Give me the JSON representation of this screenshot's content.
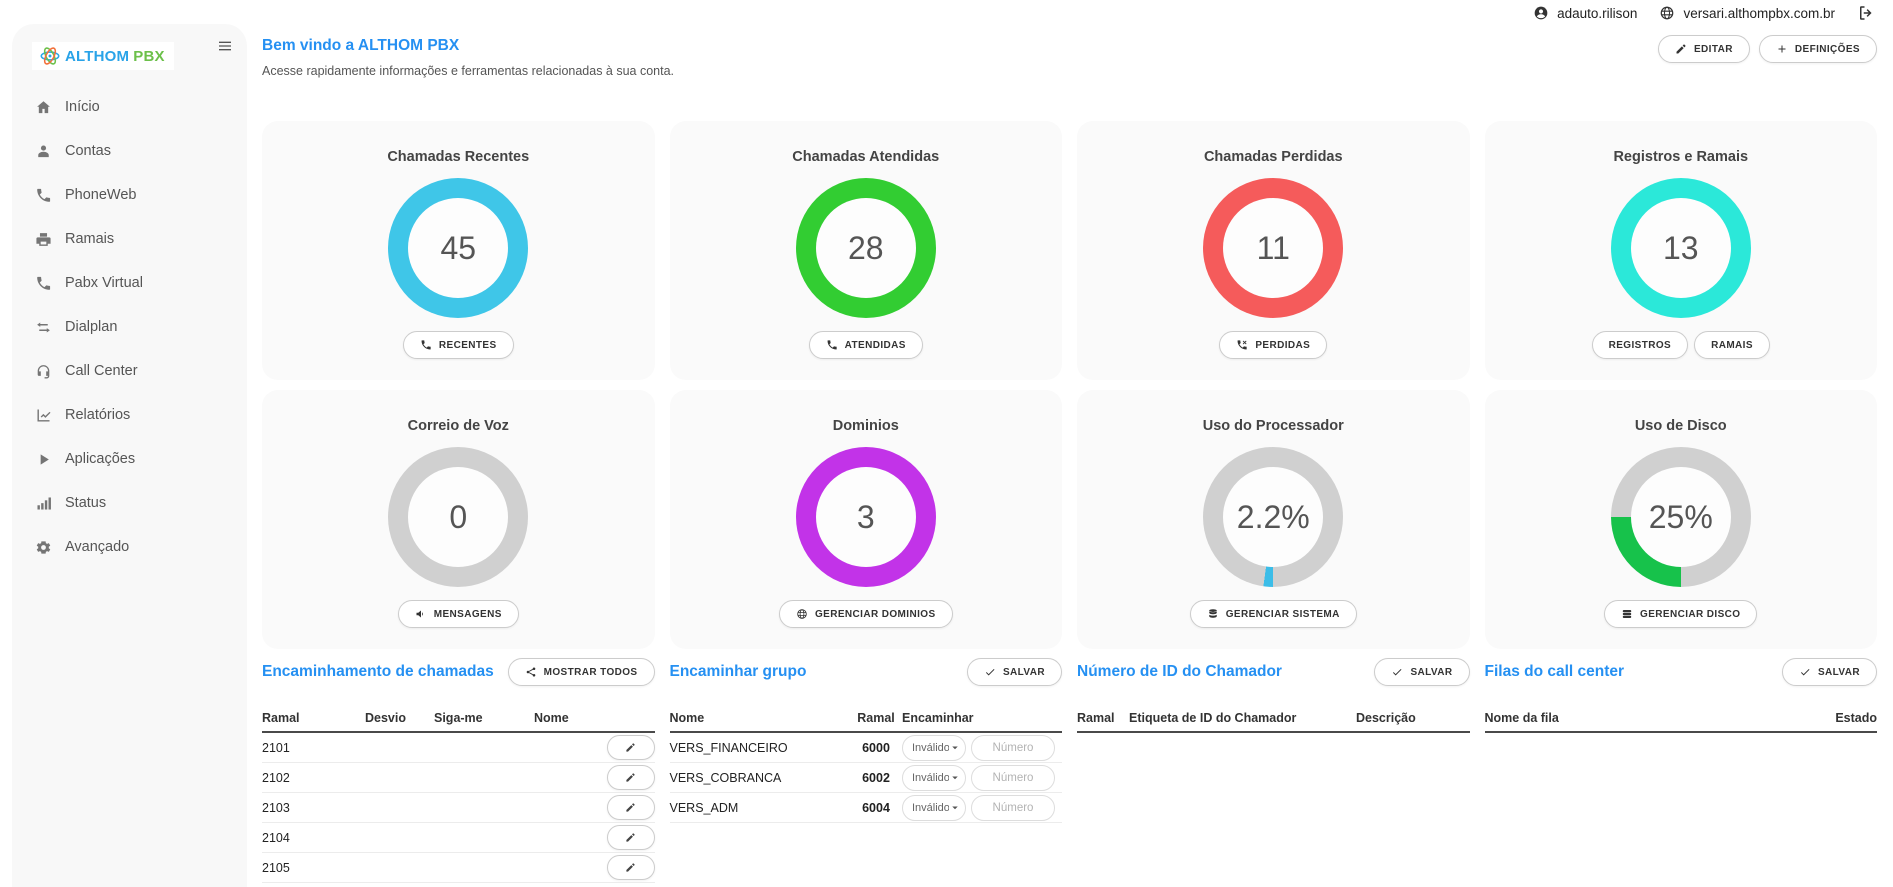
{
  "topbar": {
    "username": "adauto.rilison",
    "domain": "versari.althompbx.com.br"
  },
  "page_header": {
    "title": "Bem vindo a ALTHOM PBX",
    "subtitle": "Acesse rapidamente informações e ferramentas relacionadas à sua conta.",
    "buttons": [
      {
        "label": "EDITAR",
        "icon": "pencil-icon"
      },
      {
        "label": "DEFINIÇÕES",
        "icon": "plus-icon"
      }
    ]
  },
  "sidebar": {
    "logo_primary": "ALTHOM",
    "logo_secondary": "PBX",
    "items": [
      {
        "label": "Início",
        "icon": "home-icon"
      },
      {
        "label": "Contas",
        "icon": "user-icon"
      },
      {
        "label": "PhoneWeb",
        "icon": "phone-icon"
      },
      {
        "label": "Ramais",
        "icon": "fax-icon"
      },
      {
        "label": "Pabx Virtual",
        "icon": "phone-alt-icon"
      },
      {
        "label": "Dialplan",
        "icon": "exchange-icon"
      },
      {
        "label": "Call Center",
        "icon": "headset-icon"
      },
      {
        "label": "Relatórios",
        "icon": "chart-icon"
      },
      {
        "label": "Aplicações",
        "icon": "play-icon"
      },
      {
        "label": "Status",
        "icon": "signal-icon"
      },
      {
        "label": "Avançado",
        "icon": "gear-icon"
      }
    ]
  },
  "cards": [
    {
      "title": "Chamadas Recentes",
      "value": "45",
      "percent": 100,
      "color": "#3fc6e8",
      "track": "#d0d0d0",
      "buttons": [
        {
          "label": "RECENTES",
          "icon": "phone-icon"
        }
      ]
    },
    {
      "title": "Chamadas Atendidas",
      "value": "28",
      "percent": 100,
      "color": "#32cd32",
      "track": "#d0d0d0",
      "buttons": [
        {
          "label": "ATENDIDAS",
          "icon": "phone-icon"
        }
      ]
    },
    {
      "title": "Chamadas Perdidas",
      "value": "11",
      "percent": 100,
      "color": "#f55b5b",
      "track": "#d0d0d0",
      "buttons": [
        {
          "label": "PERDIDAS",
          "icon": "phone-missed-icon"
        }
      ]
    },
    {
      "title": "Registros e Ramais",
      "value": "13",
      "percent": 100,
      "color": "#2be8d9",
      "track": "#d0d0d0",
      "buttons": [
        {
          "label": "REGISTROS"
        },
        {
          "label": "RAMAIS"
        }
      ]
    },
    {
      "title": "Correio de Voz",
      "value": "0",
      "percent": 0,
      "color": "#3fc6e8",
      "track": "#d0d0d0",
      "buttons": [
        {
          "label": "MENSAGENS",
          "icon": "speaker-icon"
        }
      ]
    },
    {
      "title": "Dominios",
      "value": "3",
      "percent": 100,
      "color": "#c233e8",
      "track": "#d0d0d0",
      "buttons": [
        {
          "label": "GERENCIAR DOMINIOS",
          "icon": "globe-icon"
        }
      ]
    },
    {
      "title": "Uso do Processador",
      "value": "2.2%",
      "percent": 2.2,
      "color": "#3bbde8",
      "track": "#d0d0d0",
      "buttons": [
        {
          "label": "GERENCIAR SISTEMA",
          "icon": "server-icon"
        }
      ]
    },
    {
      "title": "Uso de Disco",
      "value": "25%",
      "percent": 25,
      "color": "#17c24b",
      "track": "#d0d0d0",
      "buttons": [
        {
          "label": "GERENCIAR DISCO",
          "icon": "disk-icon"
        }
      ]
    }
  ],
  "sections": {
    "forwarding": {
      "title": "Encaminhamento de chamadas",
      "action": {
        "label": "MOSTRAR TODOS",
        "icon": "share-icon"
      },
      "headers": [
        "Ramal",
        "Desvio",
        "Siga-me",
        "Nome"
      ],
      "rows": [
        {
          "ramal": "2101",
          "desvio": "",
          "sigame": "",
          "nome": ""
        },
        {
          "ramal": "2102",
          "desvio": "",
          "sigame": "",
          "nome": ""
        },
        {
          "ramal": "2103",
          "desvio": "",
          "sigame": "",
          "nome": ""
        },
        {
          "ramal": "2104",
          "desvio": "",
          "sigame": "",
          "nome": ""
        },
        {
          "ramal": "2105",
          "desvio": "",
          "sigame": "",
          "nome": ""
        }
      ]
    },
    "group_forward": {
      "title": "Encaminhar grupo",
      "action": {
        "label": "SALVAR",
        "icon": "check-icon"
      },
      "headers": [
        "Nome",
        "Ramal",
        "Encaminhar"
      ],
      "select_value": "Inválido",
      "input_placeholder": "Número",
      "rows": [
        {
          "nome": "VERS_FINANCEIRO",
          "ramal": "6000"
        },
        {
          "nome": "VERS_COBRANCA",
          "ramal": "6002"
        },
        {
          "nome": "VERS_ADM",
          "ramal": "6004"
        }
      ]
    },
    "caller_id": {
      "title": "Número de ID do Chamador",
      "action": {
        "label": "SALVAR",
        "icon": "check-icon"
      },
      "headers": [
        "Ramal",
        "Etiqueta de ID do Chamador",
        "Descrição"
      ],
      "rows": []
    },
    "queues": {
      "title": "Filas do call center",
      "action": {
        "label": "SALVAR",
        "icon": "check-icon"
      },
      "headers": [
        "Nome da fila",
        "Estado"
      ],
      "rows": []
    }
  }
}
